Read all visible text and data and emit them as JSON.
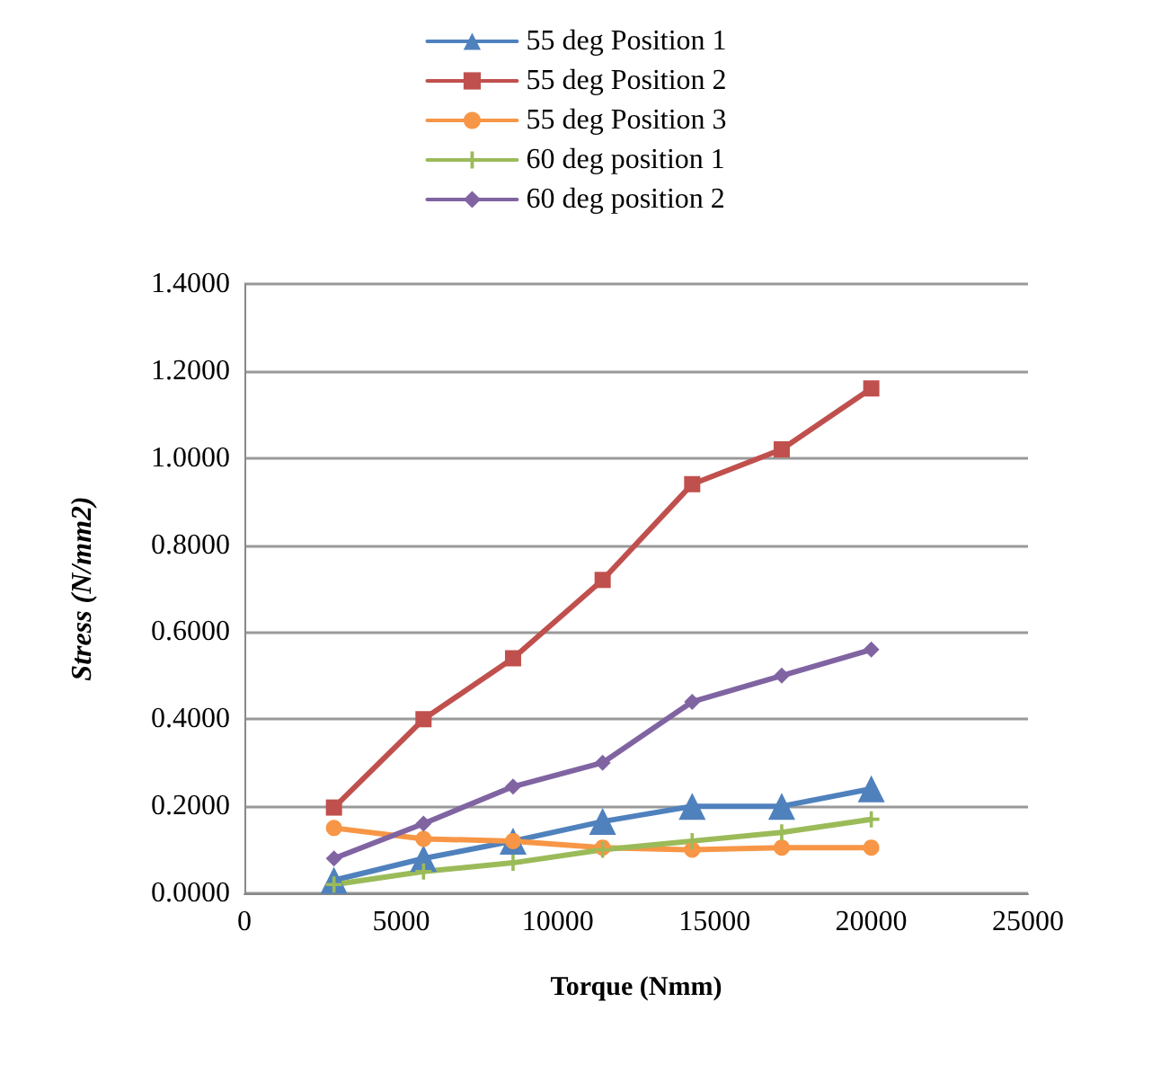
{
  "chart_data": {
    "type": "line",
    "xlabel": "Torque (Nmm)",
    "ylabel": "Stress (N/mm2)",
    "x": [
      2857,
      5714,
      8571,
      11429,
      14286,
      17143,
      20000
    ],
    "series": [
      {
        "name": "55 deg Position 1",
        "color": "#4f81bd",
        "marker": "triangle",
        "values": [
          0.03,
          0.08,
          0.12,
          0.165,
          0.2,
          0.2,
          0.24
        ]
      },
      {
        "name": "55 deg Position 2",
        "color": "#c0504d",
        "marker": "square",
        "values": [
          0.197,
          0.4,
          0.54,
          0.72,
          0.94,
          1.02,
          1.16
        ]
      },
      {
        "name": "55 deg Position 3",
        "color": "#f79646",
        "marker": "circle",
        "values": [
          0.15,
          0.125,
          0.12,
          0.105,
          0.1,
          0.105,
          0.105
        ]
      },
      {
        "name": "60 deg position 1",
        "color": "#9bbb59",
        "marker": "cross",
        "values": [
          0.02,
          0.05,
          0.07,
          0.1,
          0.12,
          0.14,
          0.17
        ]
      },
      {
        "name": "60 deg position 2",
        "color": "#8064a2",
        "marker": "diamond",
        "values": [
          0.08,
          0.16,
          0.245,
          0.3,
          0.44,
          0.5,
          0.56
        ]
      }
    ],
    "xlim": [
      0,
      25000
    ],
    "xticks": [
      0,
      5000,
      10000,
      15000,
      20000,
      25000
    ],
    "ylim": [
      0,
      1.4
    ],
    "yticks": [
      {
        "value": 0,
        "label": "0.0000"
      },
      {
        "value": 0.2,
        "label": "0.2000"
      },
      {
        "value": 0.4,
        "label": "0.4000"
      },
      {
        "value": 0.6,
        "label": "0.6000"
      },
      {
        "value": 0.8,
        "label": "0.8000"
      },
      {
        "value": 1.0,
        "label": "1.0000"
      },
      {
        "value": 1.2,
        "label": "1.2000"
      },
      {
        "value": 1.4,
        "label": "1.4000"
      }
    ],
    "grid": "y",
    "legend": "top",
    "line_style": "solid"
  }
}
